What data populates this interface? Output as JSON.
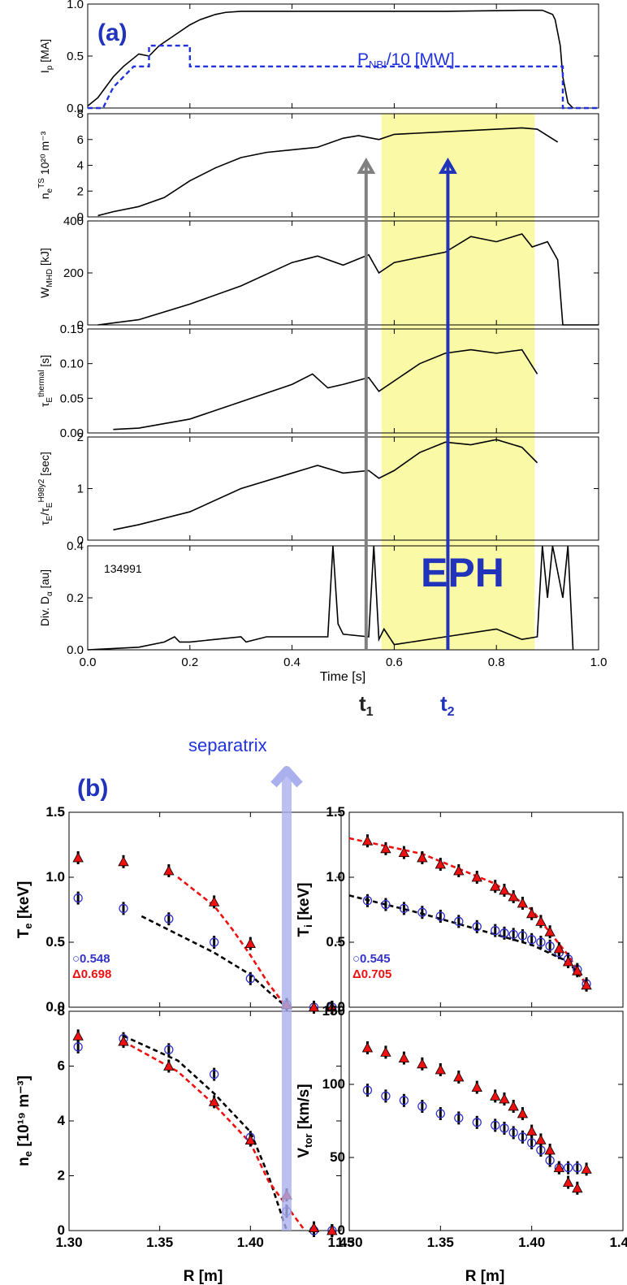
{
  "panel_a": {
    "tag": "(a)",
    "shot": "134991",
    "eph_label": "EPH",
    "t1_label": "t",
    "t1_sub": "1",
    "t2_label": "t",
    "t2_sub": "2",
    "xlabel": "Time [s]",
    "xticks": [
      "0.0",
      "0.2",
      "0.4",
      "0.6",
      "0.8",
      "1.0"
    ],
    "colors": {
      "line": "#000000",
      "nbi": "#2233dd",
      "highlight": "#fafaa6",
      "t1_arrow": "#808080",
      "t2_arrow": "#2233bb",
      "tag": "#2233bb"
    }
  },
  "panel_b": {
    "tag": "(b)",
    "separatrix_label": "separatrix",
    "xlabel": "R [m]",
    "xticks": [
      "1.30",
      "1.35",
      "1.40",
      "1.45"
    ],
    "colors": {
      "t1": "#3333cc",
      "t2": "#ee1111",
      "separatrix": "#aab0ee"
    }
  },
  "chart_data": [
    {
      "type": "line",
      "id": "ip",
      "ylabel_main": "I",
      "ylabel_sub": "p",
      "ylabel_post": " [MA]",
      "yticks": [
        "0.0",
        "0.5",
        "1.0"
      ],
      "ylim": [
        0,
        1
      ],
      "xlim": [
        0,
        1
      ],
      "series": [
        {
          "name": "Ip",
          "x": [
            0.0,
            0.02,
            0.05,
            0.07,
            0.1,
            0.12,
            0.14,
            0.17,
            0.2,
            0.22,
            0.25,
            0.27,
            0.3,
            0.35,
            0.5,
            0.6,
            0.7,
            0.85,
            0.89,
            0.9,
            0.91,
            0.915,
            0.925,
            0.93,
            0.94,
            0.95
          ],
          "y": [
            0.02,
            0.1,
            0.3,
            0.4,
            0.52,
            0.5,
            0.6,
            0.7,
            0.8,
            0.85,
            0.9,
            0.92,
            0.93,
            0.93,
            0.93,
            0.93,
            0.93,
            0.94,
            0.94,
            0.92,
            0.9,
            0.85,
            0.6,
            0.3,
            0.05,
            0.0
          ]
        },
        {
          "name": "P_NBI/10 [MW]",
          "label_main": "P",
          "label_sub": "NBI",
          "label_post": "/10 [MW]",
          "x": [
            0.0,
            0.03,
            0.05,
            0.05,
            0.09,
            0.09,
            0.12,
            0.12,
            0.2,
            0.2,
            0.7,
            0.93,
            0.93,
            1.0
          ],
          "y": [
            0.0,
            0.0,
            0.2,
            0.2,
            0.4,
            0.4,
            0.4,
            0.6,
            0.6,
            0.4,
            0.4,
            0.4,
            0.0,
            0.0
          ]
        }
      ]
    },
    {
      "type": "line",
      "id": "ne_ts",
      "ylabel_main": "n",
      "ylabel_sub": "e",
      "ylabel_sup": "TS",
      "ylabel_post": " 10²⁰ m⁻³",
      "yticks": [
        "0",
        "2",
        "4",
        "6",
        "8"
      ],
      "ylim": [
        0,
        8
      ],
      "xlim": [
        0,
        1
      ],
      "series": [
        {
          "name": "ne",
          "x": [
            0.02,
            0.05,
            0.1,
            0.15,
            0.2,
            0.25,
            0.3,
            0.35,
            0.4,
            0.45,
            0.5,
            0.53,
            0.57,
            0.6,
            0.7,
            0.8,
            0.85,
            0.88,
            0.92
          ],
          "y": [
            0.1,
            0.4,
            0.8,
            1.5,
            2.8,
            3.8,
            4.6,
            5.0,
            5.2,
            5.4,
            6.1,
            6.3,
            6.0,
            6.4,
            6.6,
            6.8,
            6.9,
            6.8,
            5.8
          ]
        }
      ]
    },
    {
      "type": "line",
      "id": "wmhd",
      "ylabel_main": "W",
      "ylabel_sub": "MHD",
      "ylabel_post": " [kJ]",
      "yticks": [
        "0",
        "200",
        "400"
      ],
      "ylim": [
        0,
        400
      ],
      "xlim": [
        0,
        1
      ],
      "series": [
        {
          "name": "W_MHD",
          "x": [
            0.02,
            0.1,
            0.2,
            0.3,
            0.4,
            0.45,
            0.5,
            0.55,
            0.57,
            0.6,
            0.7,
            0.75,
            0.8,
            0.85,
            0.87,
            0.9,
            0.92,
            0.93,
            1.0
          ],
          "y": [
            0,
            20,
            80,
            150,
            240,
            265,
            230,
            270,
            200,
            240,
            280,
            340,
            320,
            350,
            300,
            320,
            250,
            0,
            0
          ]
        }
      ]
    },
    {
      "type": "line",
      "id": "tauE",
      "ylabel_main": "τ",
      "ylabel_sub": "E",
      "ylabel_sup": "thermal",
      "ylabel_post": " [s]",
      "yticks": [
        "0.00",
        "0.05",
        "0.10",
        "0.15"
      ],
      "ylim": [
        0,
        0.15
      ],
      "xlim": [
        0,
        1
      ],
      "series": [
        {
          "name": "tauE",
          "x": [
            0.05,
            0.1,
            0.2,
            0.3,
            0.4,
            0.44,
            0.47,
            0.5,
            0.55,
            0.57,
            0.6,
            0.65,
            0.7,
            0.75,
            0.8,
            0.85,
            0.88
          ],
          "y": [
            0.005,
            0.007,
            0.02,
            0.045,
            0.07,
            0.085,
            0.065,
            0.07,
            0.08,
            0.06,
            0.075,
            0.1,
            0.115,
            0.12,
            0.115,
            0.12,
            0.085
          ]
        }
      ]
    },
    {
      "type": "line",
      "id": "h98",
      "ylabel_main": "τ",
      "ylabel_sub": "E",
      "ylabel_mid": "/τ",
      "ylabel_sub2": "E",
      "ylabel_sup": "H98y2",
      "ylabel_post": " [sec]",
      "yticks": [
        "0",
        "1",
        "2"
      ],
      "ylim": [
        0,
        2
      ],
      "xlim": [
        0,
        1
      ],
      "series": [
        {
          "name": "H98",
          "x": [
            0.05,
            0.1,
            0.2,
            0.3,
            0.4,
            0.45,
            0.5,
            0.55,
            0.57,
            0.6,
            0.65,
            0.7,
            0.75,
            0.8,
            0.85,
            0.88
          ],
          "y": [
            0.2,
            0.3,
            0.55,
            1.0,
            1.3,
            1.45,
            1.3,
            1.35,
            1.2,
            1.35,
            1.7,
            1.9,
            1.85,
            1.95,
            1.8,
            1.5
          ]
        }
      ]
    },
    {
      "type": "line",
      "id": "dalpha",
      "ylabel_main": "Div. D",
      "ylabel_sub": "α",
      "ylabel_post": " [au]",
      "yticks": [
        "0.0",
        "0.2",
        "0.4"
      ],
      "ylim": [
        0,
        0.4
      ],
      "xlim": [
        0,
        1
      ],
      "series": [
        {
          "name": "Dalpha",
          "x": [
            0.0,
            0.1,
            0.15,
            0.17,
            0.18,
            0.2,
            0.3,
            0.31,
            0.35,
            0.47,
            0.48,
            0.49,
            0.5,
            0.55,
            0.56,
            0.57,
            0.58,
            0.6,
            0.7,
            0.8,
            0.85,
            0.88,
            0.89,
            0.9,
            0.91,
            0.93,
            0.94,
            0.95
          ],
          "y": [
            0.0,
            0.01,
            0.03,
            0.05,
            0.03,
            0.03,
            0.05,
            0.03,
            0.05,
            0.05,
            0.4,
            0.1,
            0.06,
            0.05,
            0.4,
            0.04,
            0.08,
            0.02,
            0.05,
            0.08,
            0.04,
            0.05,
            0.4,
            0.2,
            0.4,
            0.2,
            0.4,
            0.0
          ]
        }
      ]
    },
    {
      "type": "scatter",
      "id": "Te",
      "ylabel_main": "T",
      "ylabel_sub": "e",
      "ylabel_post": " [keV]",
      "yticks": [
        "0.0",
        "0.5",
        "1.0",
        "1.5"
      ],
      "ylim": [
        0,
        1.5
      ],
      "xlim": [
        1.3,
        1.45
      ],
      "legend": [
        {
          "label": "0.548",
          "marker": "circle"
        },
        {
          "label": "0.698",
          "marker": "triangle"
        }
      ],
      "series": [
        {
          "name": "0.548",
          "marker": "circle",
          "x": [
            1.305,
            1.33,
            1.355,
            1.38,
            1.4,
            1.42,
            1.435,
            1.445
          ],
          "y": [
            0.84,
            0.76,
            0.68,
            0.5,
            0.22,
            0.02,
            0.0,
            0.0
          ]
        },
        {
          "name": "0.698",
          "marker": "triangle",
          "x": [
            1.305,
            1.33,
            1.355,
            1.38,
            1.4,
            1.42,
            1.435,
            1.445
          ],
          "y": [
            1.15,
            1.12,
            1.05,
            0.81,
            0.49,
            0.02,
            0.0,
            0.0
          ]
        },
        {
          "name": "fit 0.548",
          "style": "dashed",
          "x": [
            1.34,
            1.36,
            1.38,
            1.4,
            1.41,
            1.42
          ],
          "y": [
            0.7,
            0.56,
            0.42,
            0.25,
            0.12,
            0.0
          ]
        },
        {
          "name": "fit 0.698",
          "style": "dashed",
          "x": [
            1.36,
            1.38,
            1.39,
            1.4,
            1.41,
            1.42
          ],
          "y": [
            1.0,
            0.78,
            0.6,
            0.4,
            0.18,
            0.0
          ]
        }
      ]
    },
    {
      "type": "scatter",
      "id": "Ti",
      "ylabel_main": "T",
      "ylabel_sub": "i",
      "ylabel_post": " [keV]",
      "yticks": [
        "0.0",
        "0.5",
        "1.0",
        "1.5"
      ],
      "ylim": [
        0,
        1.5
      ],
      "xlim": [
        1.3,
        1.45
      ],
      "legend": [
        {
          "label": "0.545",
          "marker": "circle"
        },
        {
          "label": "0.705",
          "marker": "triangle"
        }
      ],
      "series": [
        {
          "name": "0.545",
          "marker": "circle",
          "x": [
            1.31,
            1.32,
            1.33,
            1.34,
            1.35,
            1.36,
            1.37,
            1.38,
            1.385,
            1.39,
            1.395,
            1.4,
            1.405,
            1.41,
            1.415,
            1.42,
            1.425,
            1.43
          ],
          "y": [
            0.82,
            0.79,
            0.76,
            0.73,
            0.7,
            0.66,
            0.62,
            0.59,
            0.57,
            0.56,
            0.55,
            0.52,
            0.5,
            0.47,
            0.42,
            0.37,
            0.29,
            0.18
          ]
        },
        {
          "name": "0.705",
          "marker": "triangle",
          "x": [
            1.31,
            1.32,
            1.33,
            1.34,
            1.35,
            1.36,
            1.37,
            1.38,
            1.385,
            1.39,
            1.395,
            1.4,
            1.405,
            1.41,
            1.415,
            1.42,
            1.425,
            1.43
          ],
          "y": [
            1.28,
            1.22,
            1.19,
            1.15,
            1.1,
            1.05,
            1.0,
            0.93,
            0.9,
            0.85,
            0.8,
            0.72,
            0.66,
            0.58,
            0.45,
            0.35,
            0.28,
            0.17
          ]
        },
        {
          "name": "fit 0.545",
          "style": "dashed",
          "x": [
            1.3,
            1.34,
            1.38,
            1.4,
            1.42,
            1.43
          ],
          "y": [
            0.86,
            0.72,
            0.56,
            0.48,
            0.35,
            0.18
          ]
        },
        {
          "name": "fit 0.705",
          "style": "dashed",
          "x": [
            1.3,
            1.34,
            1.38,
            1.4,
            1.42,
            1.43
          ],
          "y": [
            1.3,
            1.18,
            0.95,
            0.75,
            0.4,
            0.17
          ]
        }
      ]
    },
    {
      "type": "scatter",
      "id": "ne_prof",
      "ylabel_main": "n",
      "ylabel_sub": "e",
      "ylabel_post": " [10¹⁹ m⁻³]",
      "yticks": [
        "0",
        "2",
        "4",
        "6",
        "8"
      ],
      "ylim": [
        0,
        8
      ],
      "xlim": [
        1.3,
        1.45
      ],
      "series": [
        {
          "name": "t1",
          "marker": "circle",
          "x": [
            1.305,
            1.33,
            1.355,
            1.38,
            1.4,
            1.42,
            1.435,
            1.445
          ],
          "y": [
            6.7,
            7.0,
            6.6,
            5.7,
            3.4,
            0.7,
            0.0,
            0.0
          ]
        },
        {
          "name": "t2",
          "marker": "triangle",
          "x": [
            1.305,
            1.33,
            1.355,
            1.38,
            1.4,
            1.42,
            1.435,
            1.445
          ],
          "y": [
            7.1,
            6.9,
            6.0,
            4.7,
            3.3,
            1.3,
            0.1,
            0.0
          ]
        },
        {
          "name": "fit t1",
          "style": "dashed",
          "x": [
            1.33,
            1.36,
            1.38,
            1.4,
            1.41,
            1.42
          ],
          "y": [
            7.1,
            6.2,
            5.0,
            3.6,
            2.0,
            0.0
          ]
        },
        {
          "name": "fit t2",
          "style": "dashed",
          "x": [
            1.33,
            1.36,
            1.38,
            1.4,
            1.41,
            1.43
          ],
          "y": [
            6.9,
            5.8,
            4.6,
            3.2,
            1.8,
            0.0
          ]
        }
      ]
    },
    {
      "type": "scatter",
      "id": "vtor",
      "ylabel_main": "V",
      "ylabel_sub": "tor",
      "ylabel_post": " [km/s]",
      "yticks": [
        "0",
        "50",
        "100",
        "150"
      ],
      "ylim": [
        0,
        150
      ],
      "xlim": [
        1.3,
        1.45
      ],
      "series": [
        {
          "name": "t1",
          "marker": "circle",
          "x": [
            1.31,
            1.32,
            1.33,
            1.34,
            1.35,
            1.36,
            1.37,
            1.38,
            1.385,
            1.39,
            1.395,
            1.4,
            1.405,
            1.41,
            1.415,
            1.42,
            1.425
          ],
          "y": [
            96,
            92,
            89,
            85,
            80,
            77,
            74,
            72,
            70,
            67,
            64,
            60,
            55,
            48,
            43,
            43,
            43
          ]
        },
        {
          "name": "t2",
          "marker": "triangle",
          "x": [
            1.31,
            1.32,
            1.33,
            1.34,
            1.35,
            1.36,
            1.37,
            1.38,
            1.385,
            1.39,
            1.395,
            1.4,
            1.405,
            1.41,
            1.415,
            1.42,
            1.425,
            1.43
          ],
          "y": [
            125,
            122,
            118,
            114,
            110,
            105,
            98,
            92,
            90,
            85,
            80,
            68,
            62,
            55,
            43,
            33,
            29,
            42
          ]
        }
      ]
    }
  ]
}
